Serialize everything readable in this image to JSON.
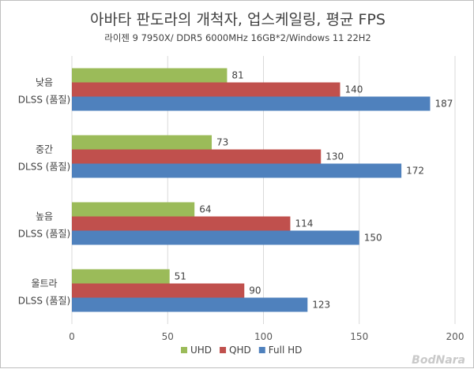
{
  "chart_data": {
    "type": "bar",
    "orientation": "horizontal",
    "title": "아바타 판도라의 개척자, 업스케일링, 평균 FPS",
    "subtitle": "라이젠 9 7950X/ DDR5 6000MHz 16GB*2/Windows 11 22H2",
    "categories": [
      [
        "낮음",
        "DLSS (품질)"
      ],
      [
        "중간",
        "DLSS (품질)"
      ],
      [
        "높음",
        "DLSS (품질)"
      ],
      [
        "울트라",
        "DLSS (품질)"
      ]
    ],
    "series": [
      {
        "name": "UHD",
        "color": "#9bbb59",
        "values": [
          81,
          73,
          64,
          51
        ]
      },
      {
        "name": "QHD",
        "color": "#c0504d",
        "values": [
          140,
          130,
          114,
          90
        ]
      },
      {
        "name": "Full HD",
        "color": "#4f81bd",
        "values": [
          187,
          172,
          150,
          123
        ]
      }
    ],
    "xlim": [
      0,
      200
    ],
    "xticks": [
      0,
      50,
      100,
      150,
      200
    ],
    "grid": true,
    "legend_position": "bottom"
  },
  "watermark": "BodNara"
}
